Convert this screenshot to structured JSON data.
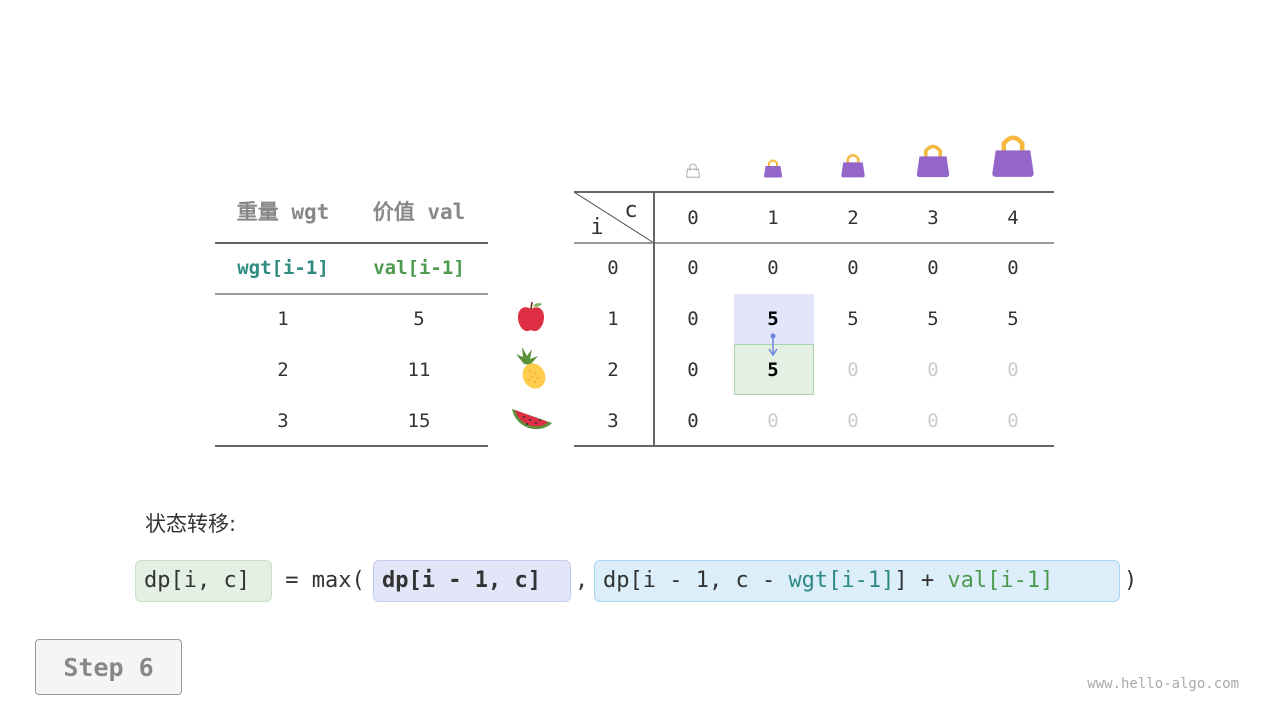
{
  "items_table": {
    "headers": [
      "重量 wgt",
      "价值 val"
    ],
    "subheaders": [
      "wgt[i-1]",
      "val[i-1]"
    ],
    "rows": [
      [
        "1",
        "5"
      ],
      [
        "2",
        "11"
      ],
      [
        "3",
        "15"
      ]
    ],
    "item_icons": [
      "apple-icon",
      "pineapple-icon",
      "watermelon-icon"
    ]
  },
  "dp_table": {
    "corner_col_label": "c",
    "corner_row_label": "i",
    "capacity_icons": [
      "empty-bag-icon",
      "bag-icon",
      "bag-icon",
      "bag-icon",
      "bag-icon"
    ],
    "col_headers": [
      "0",
      "1",
      "2",
      "3",
      "4"
    ],
    "row_headers": [
      "0",
      "1",
      "2",
      "3"
    ],
    "cells": [
      [
        "0",
        "0",
        "0",
        "0",
        "0"
      ],
      [
        "0",
        "5",
        "5",
        "5",
        "5"
      ],
      [
        "0",
        "5",
        "0",
        "0",
        "0"
      ],
      [
        "0",
        "0",
        "0",
        "0",
        "0"
      ]
    ],
    "computed": [
      [
        true,
        true,
        true,
        true,
        true
      ],
      [
        true,
        true,
        true,
        true,
        true
      ],
      [
        true,
        true,
        false,
        false,
        false
      ],
      [
        true,
        false,
        false,
        false,
        false
      ]
    ],
    "source_cell": [
      1,
      1
    ],
    "target_cell": [
      2,
      1
    ]
  },
  "formula": {
    "label": "状态转移:",
    "lhs": "dp[i, c]",
    "eq": " = max(",
    "term1": "dp[i - 1, c]",
    "comma": ",",
    "term2_a": "dp[i - 1, c - ",
    "term2_wgt": "wgt[i-1]",
    "term2_b": "] + ",
    "term2_val": "val[i-1]",
    "close": ")"
  },
  "step_label": "Step 6",
  "watermark": "www.hello-algo.com",
  "colors": {
    "teal": "#2e8b7f",
    "green": "#4e9a4e",
    "source_bg": "#e2e6f8",
    "target_bg": "#e3f0e3",
    "term2_bg": "#dbeefa",
    "bag": "#9466c9",
    "handle": "#f5b942"
  }
}
